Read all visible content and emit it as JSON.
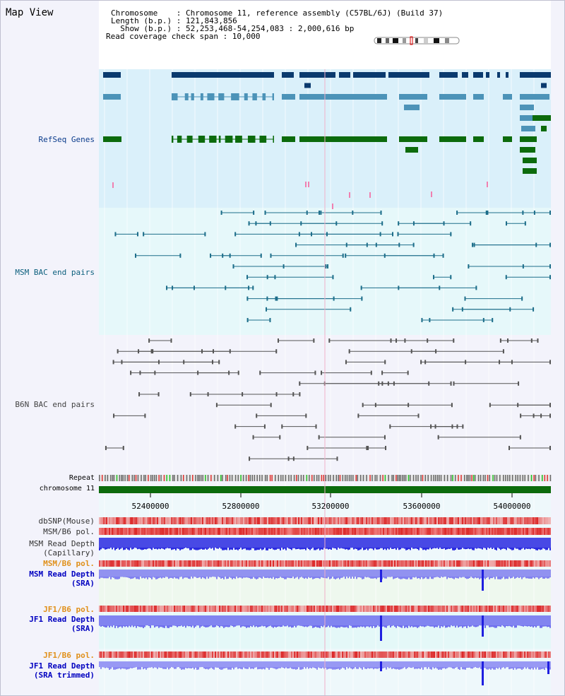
{
  "app_title": "Map View",
  "info": {
    "line1": "Chromosome    : Chromosome 11, reference assembly (C57BL/6J) (Build 37)",
    "line2": "Length (b.p.) : 121,843,856",
    "line3": "  Show (b.p.) : 52,253,468-54,254,083 : 2,000,616 bp",
    "line4": "Read coverage check span : 10,000"
  },
  "tracks": {
    "refseq": "RefSeq Genes",
    "msm_bac": "MSM BAC end pairs",
    "b6n_bac": "B6N BAC end pairs",
    "repeat": "Repeat",
    "chromosome": "chromosome 11",
    "dbsnp": "dbSNP(Mouse)",
    "msm_b6_pol": "MSM/B6 pol.",
    "msm_depth_cap_1": "MSM Read Depth",
    "msm_depth_cap_2": "(Capillary)",
    "msm_b6_pol2": "MSM/B6 pol.",
    "msm_depth_sra_1": "MSM Read Depth",
    "msm_depth_sra_2": "(SRA)",
    "jf1_pol_1": "JF1/B6 pol.",
    "jf1_depth_1": "JF1 Read Depth",
    "jf1_depth_1b": "(SRA)",
    "jf1_pol_2": "JF1/B6 pol.",
    "jf1_depth_2": "JF1 Read Depth",
    "jf1_depth_2b": "(SRA trimmed)"
  },
  "axis_ticks": [
    "52400000",
    "52800000",
    "53200000",
    "53600000",
    "54000000"
  ],
  "colors": {
    "refseq_bg": "#daf0fa",
    "msm_bg": "#e6f8fa",
    "b6n_bg": "#f3f3fb",
    "gene_navy": "#0a3a6e",
    "gene_light": "#4c93b8",
    "gene_green": "#0c6b0c",
    "bac_teal": "#1d6e8a",
    "bac_gray": "#555555",
    "chrom_green": "#0c6b0c",
    "depth_blue": "#2828e6",
    "depth_light": "#7c7cf0",
    "pol_red": "#e83030"
  }
}
